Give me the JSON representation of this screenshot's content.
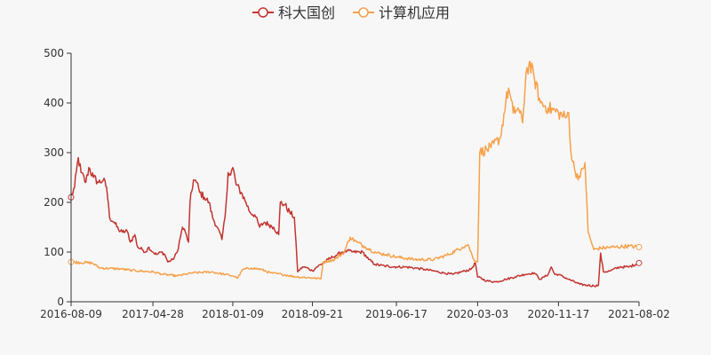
{
  "chart_data": {
    "type": "line",
    "title": "",
    "xlabel": "",
    "ylabel": "",
    "ylim": [
      0,
      500
    ],
    "y_ticks": [
      0,
      100,
      200,
      300,
      400,
      500
    ],
    "x_range": [
      "2016-08-09",
      "2021-08-02"
    ],
    "x_ticks": [
      "2016-08-09",
      "2017-04-28",
      "2018-01-09",
      "2018-09-21",
      "2019-06-17",
      "2020-03-03",
      "2020-11-17",
      "2021-08-02"
    ],
    "grid": false,
    "legend_position": "top-center",
    "series": [
      {
        "name": "科大国创",
        "color": "#c23531",
        "points": [
          [
            "2016-08-09",
            210
          ],
          [
            "2016-08-20",
            230
          ],
          [
            "2016-09-01",
            290
          ],
          [
            "2016-09-10",
            260
          ],
          [
            "2016-09-25",
            240
          ],
          [
            "2016-10-05",
            270
          ],
          [
            "2016-10-20",
            250
          ],
          [
            "2016-11-05",
            240
          ],
          [
            "2016-11-20",
            245
          ],
          [
            "2016-12-01",
            230
          ],
          [
            "2016-12-10",
            170
          ],
          [
            "2016-12-25",
            160
          ],
          [
            "2017-01-08",
            145
          ],
          [
            "2017-01-20",
            140
          ],
          [
            "2017-02-05",
            142
          ],
          [
            "2017-02-15",
            120
          ],
          [
            "2017-03-01",
            135
          ],
          [
            "2017-03-10",
            110
          ],
          [
            "2017-03-25",
            105
          ],
          [
            "2017-04-05",
            100
          ],
          [
            "2017-04-15",
            110
          ],
          [
            "2017-04-28",
            100
          ],
          [
            "2017-05-10",
            95
          ],
          [
            "2017-05-25",
            100
          ],
          [
            "2017-06-05",
            95
          ],
          [
            "2017-06-15",
            80
          ],
          [
            "2017-07-01",
            85
          ],
          [
            "2017-07-15",
            100
          ],
          [
            "2017-07-25",
            130
          ],
          [
            "2017-08-01",
            150
          ],
          [
            "2017-08-10",
            140
          ],
          [
            "2017-08-20",
            120
          ],
          [
            "2017-08-25",
            200
          ],
          [
            "2017-09-05",
            245
          ],
          [
            "2017-09-15",
            240
          ],
          [
            "2017-09-25",
            220
          ],
          [
            "2017-10-10",
            210
          ],
          [
            "2017-10-25",
            200
          ],
          [
            "2017-11-05",
            170
          ],
          [
            "2017-11-20",
            150
          ],
          [
            "2017-12-05",
            125
          ],
          [
            "2017-12-15",
            170
          ],
          [
            "2017-12-25",
            260
          ],
          [
            "2018-01-02",
            255
          ],
          [
            "2018-01-09",
            270
          ],
          [
            "2018-01-20",
            235
          ],
          [
            "2018-02-05",
            220
          ],
          [
            "2018-02-20",
            200
          ],
          [
            "2018-03-05",
            180
          ],
          [
            "2018-03-20",
            175
          ],
          [
            "2018-04-05",
            150
          ],
          [
            "2018-04-20",
            160
          ],
          [
            "2018-05-05",
            155
          ],
          [
            "2018-05-20",
            150
          ],
          [
            "2018-06-05",
            135
          ],
          [
            "2018-06-10",
            200
          ],
          [
            "2018-06-25",
            195
          ],
          [
            "2018-07-10",
            180
          ],
          [
            "2018-07-25",
            170
          ],
          [
            "2018-08-05",
            60
          ],
          [
            "2018-08-20",
            70
          ],
          [
            "2018-09-05",
            68
          ],
          [
            "2018-09-21",
            62
          ],
          [
            "2018-10-05",
            70
          ],
          [
            "2018-10-25",
            78
          ],
          [
            "2018-11-10",
            85
          ],
          [
            "2018-11-25",
            90
          ],
          [
            "2018-12-10",
            95
          ],
          [
            "2018-12-25",
            100
          ],
          [
            "2019-01-10",
            102
          ],
          [
            "2019-02-01",
            100
          ],
          [
            "2019-03-01",
            100
          ],
          [
            "2019-03-20",
            85
          ],
          [
            "2019-04-10",
            75
          ],
          [
            "2019-05-10",
            72
          ],
          [
            "2019-06-17",
            70
          ],
          [
            "2019-07-15",
            70
          ],
          [
            "2019-08-15",
            68
          ],
          [
            "2019-09-15",
            65
          ],
          [
            "2019-10-15",
            62
          ],
          [
            "2019-11-15",
            58
          ],
          [
            "2019-12-15",
            55
          ],
          [
            "2020-01-10",
            60
          ],
          [
            "2020-02-10",
            65
          ],
          [
            "2020-02-25",
            78
          ],
          [
            "2020-03-03",
            50
          ],
          [
            "2020-04-01",
            42
          ],
          [
            "2020-05-01",
            40
          ],
          [
            "2020-06-01",
            45
          ],
          [
            "2020-07-01",
            50
          ],
          [
            "2020-08-01",
            55
          ],
          [
            "2020-09-01",
            58
          ],
          [
            "2020-09-20",
            45
          ],
          [
            "2020-10-15",
            55
          ],
          [
            "2020-10-25",
            70
          ],
          [
            "2020-11-05",
            55
          ],
          [
            "2020-11-17",
            55
          ],
          [
            "2020-12-20",
            45
          ],
          [
            "2021-01-25",
            35
          ],
          [
            "2021-02-20",
            33
          ],
          [
            "2021-03-10",
            32
          ],
          [
            "2021-03-25",
            33
          ],
          [
            "2021-04-01",
            98
          ],
          [
            "2021-04-10",
            60
          ],
          [
            "2021-05-01",
            62
          ],
          [
            "2021-06-01",
            70
          ],
          [
            "2021-07-01",
            70
          ],
          [
            "2021-08-02",
            78
          ]
        ]
      },
      {
        "name": "计算机应用",
        "color": "#f7a14a",
        "points": [
          [
            "2016-08-09",
            80
          ],
          [
            "2016-10-15",
            78
          ],
          [
            "2016-11-10",
            68
          ],
          [
            "2017-01-15",
            66
          ],
          [
            "2017-02-20",
            63
          ],
          [
            "2017-04-28",
            60
          ],
          [
            "2017-06-01",
            55
          ],
          [
            "2017-07-15",
            52
          ],
          [
            "2017-09-01",
            58
          ],
          [
            "2017-11-01",
            60
          ],
          [
            "2017-12-15",
            55
          ],
          [
            "2018-01-09",
            52
          ],
          [
            "2018-01-25",
            48
          ],
          [
            "2018-02-10",
            65
          ],
          [
            "2018-03-10",
            68
          ],
          [
            "2018-04-10",
            65
          ],
          [
            "2018-05-10",
            58
          ],
          [
            "2018-06-15",
            55
          ],
          [
            "2018-08-01",
            50
          ],
          [
            "2018-09-21",
            48
          ],
          [
            "2018-10-18",
            46
          ],
          [
            "2018-10-25",
            80
          ],
          [
            "2018-12-01",
            85
          ],
          [
            "2019-01-01",
            100
          ],
          [
            "2019-01-20",
            130
          ],
          [
            "2019-02-10",
            120
          ],
          [
            "2019-03-10",
            110
          ],
          [
            "2019-04-15",
            98
          ],
          [
            "2019-05-15",
            95
          ],
          [
            "2019-06-17",
            90
          ],
          [
            "2019-08-15",
            85
          ],
          [
            "2019-10-15",
            85
          ],
          [
            "2019-12-01",
            95
          ],
          [
            "2020-01-15",
            110
          ],
          [
            "2020-02-01",
            115
          ],
          [
            "2020-02-20",
            85
          ],
          [
            "2020-03-03",
            80
          ],
          [
            "2020-03-10",
            300
          ],
          [
            "2020-04-15",
            310
          ],
          [
            "2020-05-15",
            330
          ],
          [
            "2020-06-01",
            400
          ],
          [
            "2020-06-10",
            430
          ],
          [
            "2020-06-25",
            380
          ],
          [
            "2020-07-10",
            390
          ],
          [
            "2020-07-25",
            360
          ],
          [
            "2020-08-05",
            460
          ],
          [
            "2020-08-15",
            480
          ],
          [
            "2020-09-01",
            450
          ],
          [
            "2020-09-20",
            400
          ],
          [
            "2020-10-15",
            390
          ],
          [
            "2020-11-17",
            380
          ],
          [
            "2020-12-10",
            370
          ],
          [
            "2020-12-20",
            380
          ],
          [
            "2020-12-27",
            300
          ],
          [
            "2021-01-10",
            260
          ],
          [
            "2021-01-25",
            250
          ],
          [
            "2021-02-10",
            280
          ],
          [
            "2021-02-20",
            140
          ],
          [
            "2021-03-10",
            105
          ],
          [
            "2021-04-01",
            108
          ],
          [
            "2021-05-15",
            110
          ],
          [
            "2021-07-01",
            112
          ],
          [
            "2021-08-02",
            110
          ]
        ]
      }
    ]
  }
}
